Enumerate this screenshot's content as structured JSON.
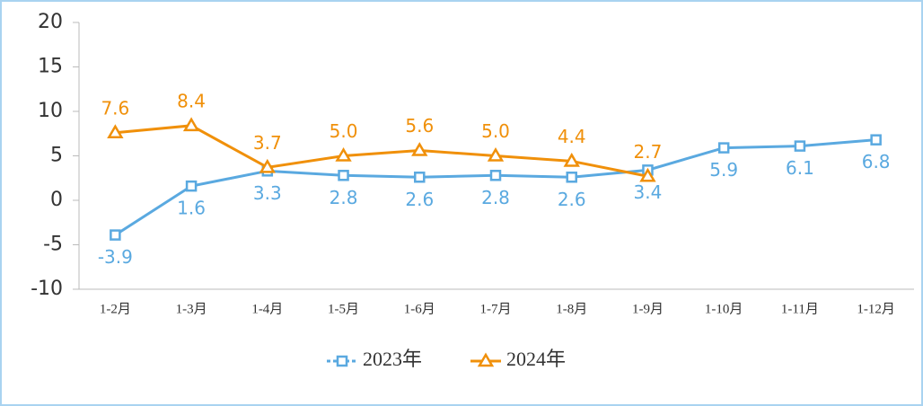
{
  "chart_data": {
    "type": "line",
    "categories": [
      "1-2月",
      "1-3月",
      "1-4月",
      "1-5月",
      "1-6月",
      "1-7月",
      "1-8月",
      "1-9月",
      "1-10月",
      "1-11月",
      "1-12月"
    ],
    "series": [
      {
        "name": "2023年",
        "color": "#5aa9e0",
        "marker": "square",
        "label_position": "below",
        "values": [
          -3.9,
          1.6,
          3.3,
          2.8,
          2.6,
          2.8,
          2.6,
          3.4,
          5.9,
          6.1,
          6.8
        ]
      },
      {
        "name": "2024年",
        "color": "#f0900a",
        "marker": "triangle",
        "label_position": "above",
        "values": [
          7.6,
          8.4,
          3.7,
          5.0,
          5.6,
          5.0,
          4.4,
          2.7,
          null,
          null,
          null
        ],
        "value_labels": [
          "7.6",
          "8.4",
          "3.7",
          "5.0",
          "5.6",
          "5.0",
          "4.4",
          "2.7",
          null,
          null,
          null
        ]
      }
    ],
    "ylim": [
      -10,
      20
    ],
    "yticks": [
      -10,
      -5,
      0,
      5,
      10,
      15,
      20
    ],
    "grid": false,
    "legend": "bottom"
  }
}
